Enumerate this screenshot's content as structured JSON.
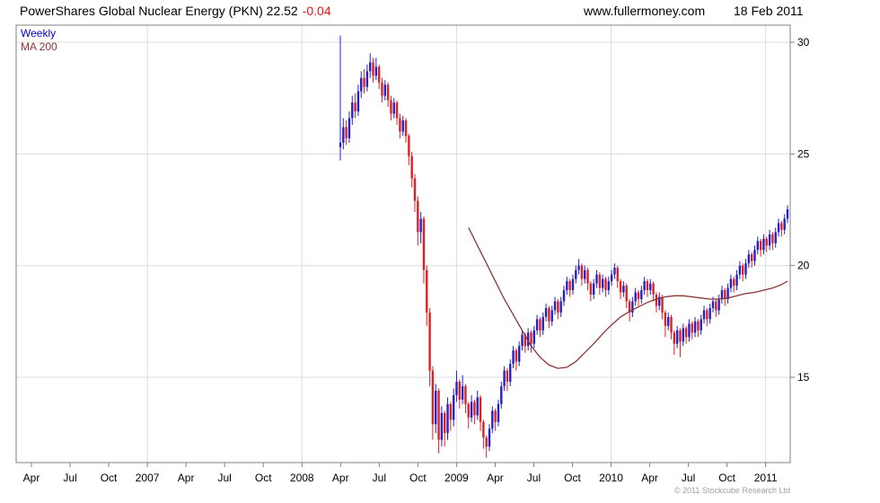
{
  "header": {
    "title": "PowerShares Global Nuclear Energy (PKN) 22.52",
    "change": "-0.04",
    "website": "www.fullermoney.com",
    "date": "18 Feb 2011"
  },
  "legend": {
    "weekly": "Weekly",
    "ma": "MA 200"
  },
  "footer": {
    "copyright": "© 2011 Stockcube Research Ltd"
  },
  "colors": {
    "up": "#2222cc",
    "down": "#dd2222",
    "ma": "#8b3535",
    "negative": "#ee1111",
    "legend_weekly": "#0000cc",
    "grid": "#dcdcdc",
    "axis": "#808080",
    "text": "#000000",
    "copyright": "#a0a0a0"
  },
  "chart_data": {
    "type": "candlestick",
    "title": "PowerShares Global Nuclear Energy (PKN)",
    "timeframe": "Weekly",
    "overlay": "MA 200",
    "last_price": 22.52,
    "change": -0.04,
    "ylim": [
      11.2,
      30.8
    ],
    "y_ticks": [
      15,
      20,
      25,
      30
    ],
    "x_labels": [
      {
        "text": "Apr",
        "m": 3
      },
      {
        "text": "Jul",
        "m": 6
      },
      {
        "text": "Oct",
        "m": 9
      },
      {
        "text": "2007",
        "m": 12
      },
      {
        "text": "Apr",
        "m": 15
      },
      {
        "text": "Jul",
        "m": 18
      },
      {
        "text": "Oct",
        "m": 21
      },
      {
        "text": "2008",
        "m": 24
      },
      {
        "text": "Apr",
        "m": 27
      },
      {
        "text": "Jul",
        "m": 30
      },
      {
        "text": "Oct",
        "m": 33
      },
      {
        "text": "2009",
        "m": 36
      },
      {
        "text": "Apr",
        "m": 39
      },
      {
        "text": "Jul",
        "m": 42
      },
      {
        "text": "Oct",
        "m": 45
      },
      {
        "text": "2010",
        "m": 48
      },
      {
        "text": "Apr",
        "m": 51
      },
      {
        "text": "Jul",
        "m": 54
      },
      {
        "text": "Oct",
        "m": 57
      },
      {
        "text": "2011",
        "m": 60
      }
    ],
    "year_gridline_months": [
      12,
      24,
      36,
      48,
      60
    ],
    "data_start": "Apr 2008",
    "weeks": [
      [
        25.3,
        30.3,
        24.7,
        25.5
      ],
      [
        25.5,
        26.6,
        25.2,
        26.2
      ],
      [
        26.2,
        26.5,
        25.4,
        25.7
      ],
      [
        25.7,
        26.9,
        25.5,
        26.6
      ],
      [
        26.6,
        27.6,
        26.3,
        27.3
      ],
      [
        27.3,
        27.7,
        26.6,
        26.9
      ],
      [
        26.9,
        28.1,
        26.7,
        27.8
      ],
      [
        27.8,
        28.7,
        27.5,
        28.4
      ],
      [
        28.4,
        28.8,
        27.7,
        28.0
      ],
      [
        28.0,
        29.0,
        27.8,
        28.7
      ],
      [
        28.7,
        29.5,
        28.4,
        29.1
      ],
      [
        29.1,
        29.3,
        28.2,
        28.5
      ],
      [
        28.5,
        29.3,
        28.3,
        28.9
      ],
      [
        28.9,
        29.0,
        27.9,
        28.2
      ],
      [
        28.2,
        28.4,
        27.3,
        27.6
      ],
      [
        27.6,
        28.3,
        27.4,
        28.1
      ],
      [
        28.1,
        28.2,
        27.1,
        27.4
      ],
      [
        27.4,
        27.6,
        26.5,
        26.8
      ],
      [
        26.8,
        27.5,
        26.6,
        27.3
      ],
      [
        27.3,
        27.4,
        26.3,
        26.6
      ],
      [
        26.6,
        26.8,
        25.7,
        26.0
      ],
      [
        26.0,
        26.7,
        25.8,
        26.5
      ],
      [
        26.5,
        26.6,
        25.5,
        25.8
      ],
      [
        25.8,
        25.9,
        24.5,
        24.9
      ],
      [
        24.9,
        25.1,
        23.5,
        23.9
      ],
      [
        23.9,
        24.1,
        22.4,
        22.9
      ],
      [
        22.9,
        23.1,
        20.9,
        21.5
      ],
      [
        21.5,
        22.4,
        21.0,
        22.1
      ],
      [
        22.1,
        22.2,
        19.2,
        19.8
      ],
      [
        19.8,
        20.0,
        17.3,
        17.9
      ],
      [
        17.9,
        18.1,
        14.6,
        15.3
      ],
      [
        15.3,
        15.5,
        12.2,
        12.9
      ],
      [
        12.9,
        14.7,
        12.5,
        14.4
      ],
      [
        14.4,
        14.5,
        11.6,
        12.2
      ],
      [
        12.2,
        13.7,
        11.9,
        13.4
      ],
      [
        13.4,
        13.5,
        11.9,
        12.5
      ],
      [
        12.5,
        14.1,
        12.2,
        13.8
      ],
      [
        13.8,
        13.9,
        12.6,
        13.1
      ],
      [
        13.1,
        14.5,
        12.8,
        14.2
      ],
      [
        14.2,
        15.3,
        13.9,
        14.8
      ],
      [
        14.8,
        14.9,
        13.6,
        14.0
      ],
      [
        14.0,
        15.1,
        13.8,
        14.6
      ],
      [
        14.6,
        14.7,
        13.4,
        13.8
      ],
      [
        13.8,
        13.9,
        12.7,
        13.2
      ],
      [
        13.2,
        14.2,
        13.0,
        13.9
      ],
      [
        13.9,
        14.0,
        12.9,
        13.3
      ],
      [
        13.3,
        14.4,
        13.1,
        14.1
      ],
      [
        14.1,
        14.2,
        12.6,
        13.0
      ],
      [
        13.0,
        13.1,
        11.8,
        12.3
      ],
      [
        12.3,
        12.4,
        11.4,
        11.9
      ],
      [
        11.9,
        12.9,
        11.7,
        12.7
      ],
      [
        12.7,
        13.7,
        12.5,
        13.5
      ],
      [
        13.5,
        13.6,
        12.6,
        13.0
      ],
      [
        13.0,
        14.0,
        12.8,
        13.8
      ],
      [
        13.8,
        14.8,
        13.6,
        14.6
      ],
      [
        14.6,
        15.5,
        14.4,
        15.3
      ],
      [
        15.3,
        15.4,
        14.4,
        14.8
      ],
      [
        14.8,
        15.8,
        14.6,
        15.6
      ],
      [
        15.6,
        16.4,
        15.4,
        16.2
      ],
      [
        16.2,
        16.3,
        15.3,
        15.7
      ],
      [
        15.7,
        16.6,
        15.5,
        16.4
      ],
      [
        16.4,
        17.1,
        16.2,
        16.9
      ],
      [
        16.9,
        17.0,
        16.1,
        16.4
      ],
      [
        16.4,
        17.2,
        16.2,
        17.0
      ],
      [
        17.0,
        17.1,
        16.1,
        16.5
      ],
      [
        16.5,
        17.3,
        16.3,
        17.1
      ],
      [
        17.1,
        17.8,
        16.9,
        17.6
      ],
      [
        17.6,
        17.7,
        16.8,
        17.1
      ],
      [
        17.1,
        17.9,
        16.9,
        17.7
      ],
      [
        17.7,
        18.3,
        17.5,
        18.1
      ],
      [
        18.1,
        18.2,
        17.2,
        17.5
      ],
      [
        17.5,
        18.2,
        17.3,
        18.0
      ],
      [
        18.0,
        18.6,
        17.8,
        18.4
      ],
      [
        18.4,
        18.5,
        17.6,
        17.9
      ],
      [
        17.9,
        18.6,
        17.7,
        18.4
      ],
      [
        18.4,
        19.1,
        18.2,
        18.9
      ],
      [
        18.9,
        19.5,
        18.7,
        19.3
      ],
      [
        19.3,
        19.4,
        18.6,
        18.9
      ],
      [
        18.9,
        19.6,
        18.7,
        19.4
      ],
      [
        19.4,
        20.0,
        19.2,
        19.8
      ],
      [
        19.8,
        20.3,
        19.6,
        20.0
      ],
      [
        20.0,
        20.1,
        19.1,
        19.4
      ],
      [
        19.4,
        20.0,
        19.2,
        19.8
      ],
      [
        19.8,
        19.9,
        18.9,
        19.2
      ],
      [
        19.2,
        19.3,
        18.4,
        18.7
      ],
      [
        18.7,
        19.4,
        18.5,
        19.2
      ],
      [
        19.2,
        19.8,
        19.0,
        19.6
      ],
      [
        19.6,
        19.7,
        18.7,
        19.0
      ],
      [
        19.0,
        19.6,
        18.8,
        19.4
      ],
      [
        19.4,
        19.5,
        18.6,
        18.9
      ],
      [
        18.9,
        19.5,
        18.7,
        19.3
      ],
      [
        19.3,
        19.8,
        19.1,
        19.6
      ],
      [
        19.6,
        20.1,
        19.4,
        19.9
      ],
      [
        19.9,
        20.0,
        19.0,
        19.3
      ],
      [
        19.3,
        19.4,
        18.5,
        18.8
      ],
      [
        18.8,
        19.3,
        18.6,
        19.1
      ],
      [
        19.1,
        19.2,
        18.1,
        18.4
      ],
      [
        18.4,
        18.5,
        17.5,
        17.9
      ],
      [
        17.9,
        18.6,
        17.7,
        18.4
      ],
      [
        18.4,
        19.0,
        18.2,
        18.8
      ],
      [
        18.8,
        18.9,
        18.2,
        18.5
      ],
      [
        18.5,
        19.1,
        18.3,
        18.9
      ],
      [
        18.9,
        19.5,
        18.7,
        19.3
      ],
      [
        19.3,
        19.4,
        18.6,
        18.9
      ],
      [
        18.9,
        19.4,
        18.7,
        19.2
      ],
      [
        19.2,
        19.3,
        18.4,
        18.7
      ],
      [
        18.7,
        18.8,
        17.9,
        18.2
      ],
      [
        18.2,
        18.8,
        18.0,
        18.6
      ],
      [
        18.6,
        18.7,
        17.6,
        17.9
      ],
      [
        17.9,
        18.0,
        16.8,
        17.3
      ],
      [
        17.3,
        17.9,
        17.1,
        17.7
      ],
      [
        17.7,
        17.8,
        16.7,
        17.0
      ],
      [
        17.0,
        17.1,
        16.0,
        16.5
      ],
      [
        16.5,
        17.3,
        16.3,
        17.1
      ],
      [
        17.1,
        17.2,
        15.9,
        16.6
      ],
      [
        16.6,
        17.4,
        16.4,
        17.2
      ],
      [
        17.2,
        17.3,
        16.5,
        16.8
      ],
      [
        16.8,
        17.6,
        16.6,
        17.4
      ],
      [
        17.4,
        17.5,
        16.7,
        17.0
      ],
      [
        17.0,
        17.7,
        16.8,
        17.5
      ],
      [
        17.5,
        17.6,
        16.8,
        17.1
      ],
      [
        17.1,
        17.8,
        16.9,
        17.6
      ],
      [
        17.6,
        18.2,
        17.4,
        18.0
      ],
      [
        18.0,
        18.1,
        17.3,
        17.6
      ],
      [
        17.6,
        18.3,
        17.4,
        18.1
      ],
      [
        18.1,
        18.6,
        17.9,
        18.4
      ],
      [
        18.4,
        18.5,
        17.7,
        18.0
      ],
      [
        18.0,
        18.7,
        17.8,
        18.5
      ],
      [
        18.5,
        19.1,
        18.3,
        18.9
      ],
      [
        18.9,
        19.0,
        18.2,
        18.5
      ],
      [
        18.5,
        19.2,
        18.3,
        19.0
      ],
      [
        19.0,
        19.6,
        18.8,
        19.4
      ],
      [
        19.4,
        19.5,
        18.8,
        19.1
      ],
      [
        19.1,
        19.8,
        18.9,
        19.6
      ],
      [
        19.6,
        20.2,
        19.4,
        20.0
      ],
      [
        20.0,
        20.1,
        19.3,
        19.6
      ],
      [
        19.6,
        20.3,
        19.4,
        20.1
      ],
      [
        20.1,
        20.7,
        19.9,
        20.5
      ],
      [
        20.5,
        20.6,
        19.9,
        20.2
      ],
      [
        20.2,
        20.9,
        20.0,
        20.7
      ],
      [
        20.7,
        21.3,
        20.5,
        21.1
      ],
      [
        21.1,
        21.2,
        20.4,
        20.7
      ],
      [
        20.7,
        21.4,
        20.5,
        21.2
      ],
      [
        21.2,
        21.3,
        20.6,
        20.9
      ],
      [
        20.9,
        21.6,
        20.7,
        21.4
      ],
      [
        21.4,
        21.5,
        20.7,
        21.0
      ],
      [
        21.0,
        21.7,
        20.8,
        21.5
      ],
      [
        21.5,
        22.1,
        21.3,
        21.9
      ],
      [
        21.9,
        22.0,
        21.3,
        21.6
      ],
      [
        21.6,
        22.3,
        21.4,
        22.1
      ],
      [
        22.1,
        22.7,
        21.9,
        22.52
      ]
    ],
    "ma200": [
      [
        43,
        21.7
      ],
      [
        46,
        20.9
      ],
      [
        49,
        20.1
      ],
      [
        52,
        19.3
      ],
      [
        55,
        18.5
      ],
      [
        58,
        17.8
      ],
      [
        61,
        17.1
      ],
      [
        64,
        16.4
      ],
      [
        67,
        15.9
      ],
      [
        70,
        15.55
      ],
      [
        73,
        15.4
      ],
      [
        76,
        15.45
      ],
      [
        79,
        15.7
      ],
      [
        82,
        16.1
      ],
      [
        85,
        16.5
      ],
      [
        88,
        16.95
      ],
      [
        91,
        17.35
      ],
      [
        94,
        17.7
      ],
      [
        97,
        17.95
      ],
      [
        100,
        18.15
      ],
      [
        103,
        18.35
      ],
      [
        106,
        18.5
      ],
      [
        109,
        18.6
      ],
      [
        112,
        18.65
      ],
      [
        115,
        18.65
      ],
      [
        118,
        18.6
      ],
      [
        121,
        18.55
      ],
      [
        124,
        18.5
      ],
      [
        127,
        18.5
      ],
      [
        130,
        18.55
      ],
      [
        133,
        18.65
      ],
      [
        136,
        18.75
      ],
      [
        139,
        18.8
      ],
      [
        142,
        18.9
      ],
      [
        145,
        19.0
      ],
      [
        148,
        19.15
      ],
      [
        150,
        19.3
      ]
    ]
  }
}
